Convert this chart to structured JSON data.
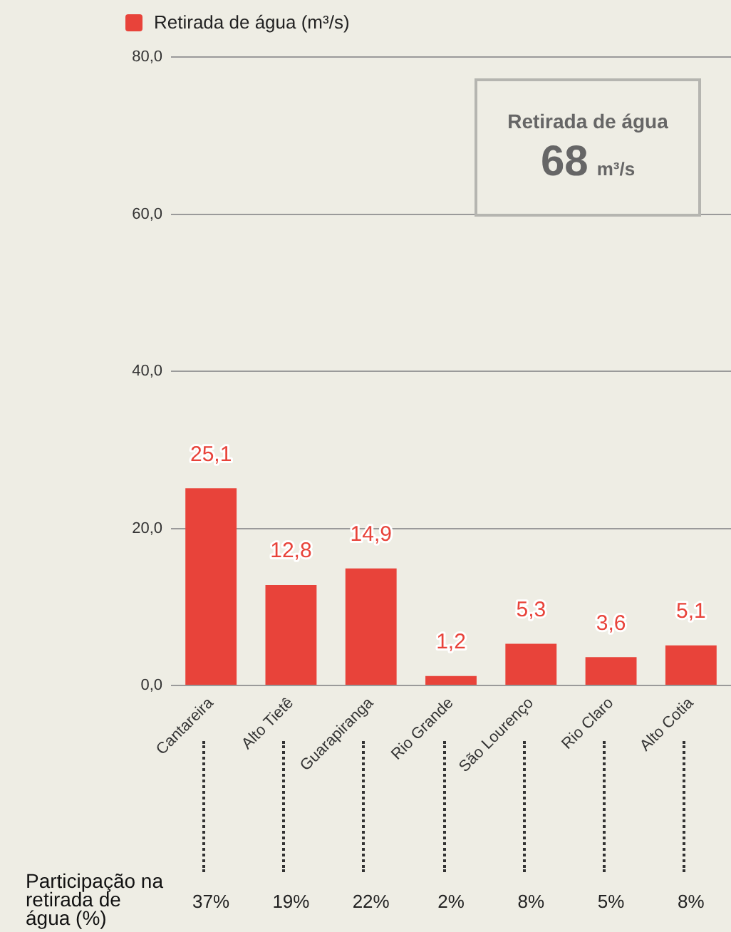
{
  "chart_data": {
    "type": "bar",
    "categories": [
      "Cantareira",
      "Alto Tietê",
      "Guarapiranga",
      "Rio Grande",
      "São Lourenço",
      "Rio Claro",
      "Alto Cotia"
    ],
    "series": [
      {
        "name": "Retirada de água (m³/s)",
        "color": "#e8433a",
        "values": [
          25.1,
          12.8,
          14.9,
          1.2,
          5.3,
          3.6,
          5.1
        ],
        "value_labels": [
          "25,1",
          "12,8",
          "14,9",
          "1,2",
          "5,3",
          "3,6",
          "5,1"
        ]
      }
    ],
    "ylim": [
      0,
      80
    ],
    "yticks": [
      {
        "value": 0,
        "label": "0,0"
      },
      {
        "value": 20,
        "label": "20,0"
      },
      {
        "value": 40,
        "label": "40,0"
      },
      {
        "value": 60,
        "label": "60,0"
      },
      {
        "value": 80,
        "label": "80,0"
      }
    ],
    "grid": "y",
    "legend": "top left",
    "annotations": [
      "Retirada de água",
      "68",
      "m³/s",
      "Participação na retirada de água (%)",
      "37%",
      "19%",
      "22%",
      "2%",
      "8%",
      "5%",
      "8%"
    ]
  }
}
